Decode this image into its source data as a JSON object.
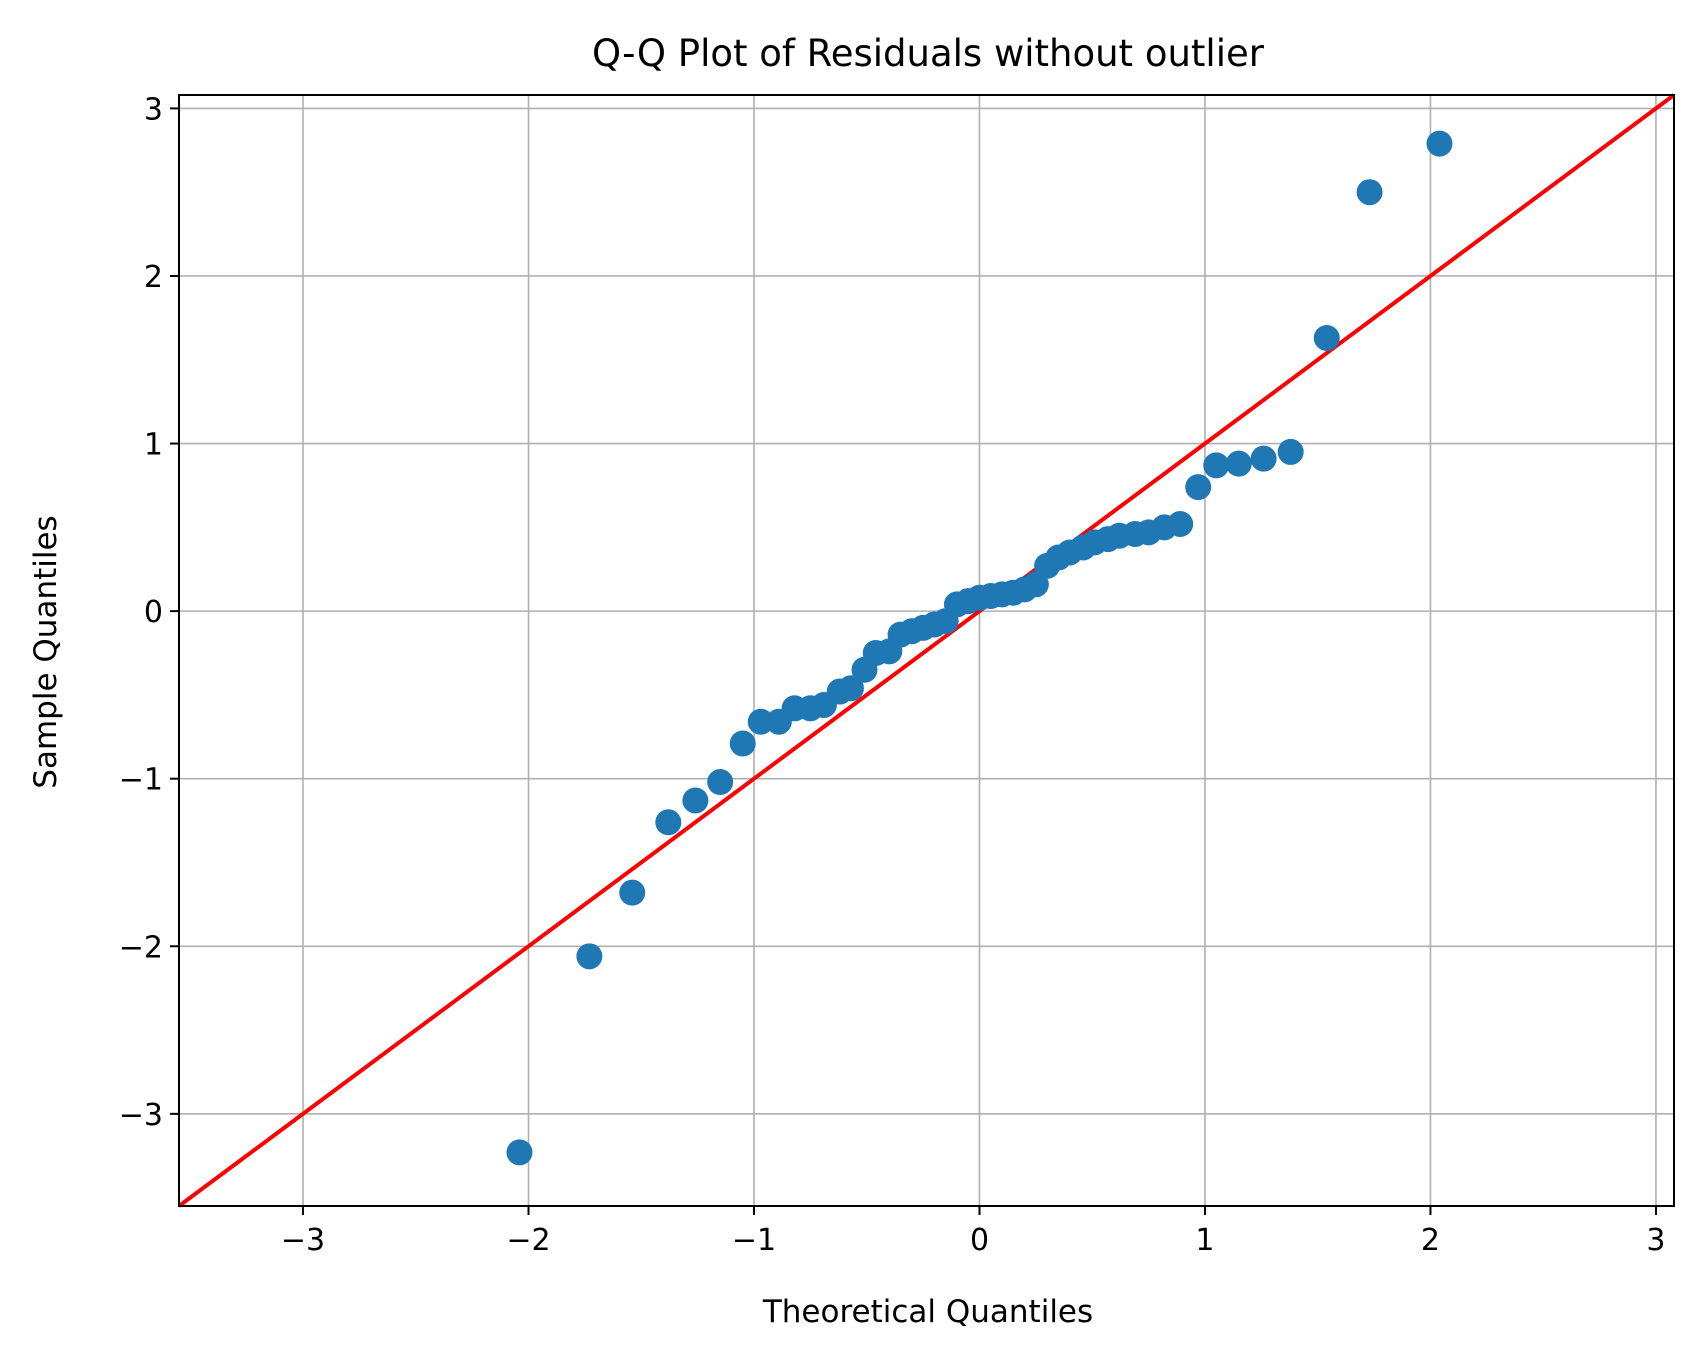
{
  "chart_data": {
    "type": "scatter",
    "title": "Q-Q Plot of Residuals without outlier",
    "xlabel": "Theoretical Quantiles",
    "ylabel": "Sample Quantiles",
    "xlim": [
      -3.55,
      3.08
    ],
    "ylim": [
      -3.55,
      3.08
    ],
    "xticks": [
      -3,
      -2,
      -1,
      0,
      1,
      2,
      3
    ],
    "xtick_labels": [
      "−3",
      "−2",
      "−1",
      "0",
      "1",
      "2",
      "3"
    ],
    "yticks": [
      -3,
      -2,
      -1,
      0,
      1,
      2,
      3
    ],
    "ytick_labels": [
      "−3",
      "−2",
      "−1",
      "0",
      "1",
      "2",
      "3"
    ],
    "grid": true,
    "colors": {
      "points": "#1f77b4",
      "reference_line": "#ff0000",
      "grid": "#b0b0b0"
    },
    "reference_line": {
      "slope": 1,
      "intercept": 0
    },
    "points": [
      [
        -2.04,
        -3.23
      ],
      [
        -1.73,
        -2.06
      ],
      [
        -1.54,
        -1.68
      ],
      [
        -1.38,
        -1.26
      ],
      [
        -1.26,
        -1.13
      ],
      [
        -1.15,
        -1.02
      ],
      [
        -1.05,
        -0.79
      ],
      [
        -0.97,
        -0.66
      ],
      [
        -0.89,
        -0.66
      ],
      [
        -0.82,
        -0.58
      ],
      [
        -0.75,
        -0.58
      ],
      [
        -0.69,
        -0.56
      ],
      [
        -0.62,
        -0.48
      ],
      [
        -0.57,
        -0.46
      ],
      [
        -0.51,
        -0.35
      ],
      [
        -0.46,
        -0.25
      ],
      [
        -0.4,
        -0.24
      ],
      [
        -0.35,
        -0.14
      ],
      [
        -0.3,
        -0.12
      ],
      [
        -0.25,
        -0.1
      ],
      [
        -0.2,
        -0.08
      ],
      [
        -0.15,
        -0.06
      ],
      [
        -0.1,
        0.04
      ],
      [
        -0.05,
        0.06
      ],
      [
        0.0,
        0.08
      ],
      [
        0.05,
        0.09
      ],
      [
        0.1,
        0.1
      ],
      [
        0.15,
        0.11
      ],
      [
        0.2,
        0.13
      ],
      [
        0.25,
        0.16
      ],
      [
        0.3,
        0.27
      ],
      [
        0.35,
        0.32
      ],
      [
        0.4,
        0.35
      ],
      [
        0.46,
        0.38
      ],
      [
        0.51,
        0.41
      ],
      [
        0.57,
        0.43
      ],
      [
        0.62,
        0.45
      ],
      [
        0.69,
        0.46
      ],
      [
        0.75,
        0.47
      ],
      [
        0.82,
        0.5
      ],
      [
        0.89,
        0.52
      ],
      [
        0.97,
        0.74
      ],
      [
        1.05,
        0.87
      ],
      [
        1.15,
        0.88
      ],
      [
        1.26,
        0.91
      ],
      [
        1.38,
        0.95
      ],
      [
        1.54,
        1.63
      ],
      [
        1.73,
        2.5
      ],
      [
        2.04,
        2.79
      ]
    ]
  }
}
